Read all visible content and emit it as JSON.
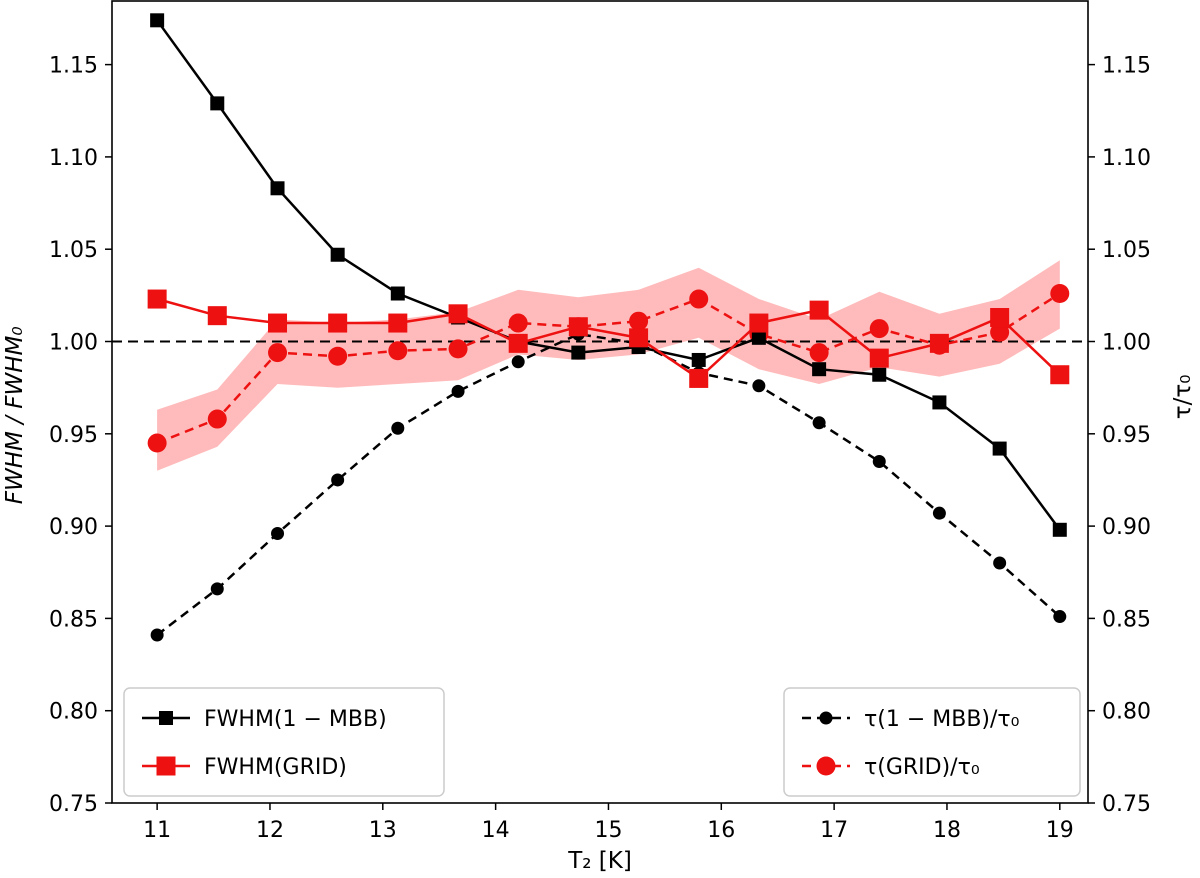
{
  "chart_data": {
    "type": "line",
    "title": "",
    "xlabel": "T₂ [K]",
    "ylabel_left": "FWHM / FWHM₀",
    "ylabel_right": "τ/τ₀",
    "xlim": [
      10.6,
      19.25
    ],
    "ylim": [
      0.75,
      1.185
    ],
    "x_ticks": [
      "11",
      "12",
      "13",
      "14",
      "15",
      "16",
      "17",
      "18",
      "19"
    ],
    "y_ticks": [
      "0.75",
      "0.80",
      "0.85",
      "0.90",
      "0.95",
      "1.00",
      "1.05",
      "1.10",
      "1.15"
    ],
    "reference_line_y": 1.0,
    "x": [
      11.0,
      11.533,
      12.067,
      12.6,
      13.133,
      13.667,
      14.2,
      14.733,
      15.267,
      15.8,
      16.333,
      16.867,
      17.4,
      17.933,
      18.467,
      19.0
    ],
    "series": [
      {
        "name": "FWHM(1 − MBB)",
        "color": "#000000",
        "style": "solid",
        "marker": "square",
        "values": [
          1.174,
          1.129,
          1.083,
          1.047,
          1.026,
          1.013,
          1.0,
          0.994,
          0.997,
          0.99,
          1.002,
          0.985,
          0.982,
          0.967,
          0.942,
          0.898
        ]
      },
      {
        "name": "FWHM(GRID)",
        "color": "#ee1111",
        "style": "solid",
        "marker": "square",
        "values": [
          1.023,
          1.014,
          1.01,
          1.01,
          1.01,
          1.015,
          0.999,
          1.008,
          1.002,
          0.98,
          1.01,
          1.017,
          0.991,
          0.999,
          1.013,
          0.982
        ]
      },
      {
        "name": "τ(1 − MBB)/τ₀",
        "color": "#000000",
        "style": "dashed",
        "marker": "circle",
        "values": [
          0.841,
          0.866,
          0.896,
          0.925,
          0.953,
          0.973,
          0.989,
          1.004,
          0.999,
          0.983,
          0.976,
          0.956,
          0.935,
          0.907,
          0.88,
          0.851
        ]
      },
      {
        "name": "τ(GRID)/τ₀",
        "color": "#ee1111",
        "style": "dashed",
        "marker": "circle",
        "values": [
          0.945,
          0.958,
          0.994,
          0.992,
          0.995,
          0.996,
          1.01,
          1.008,
          1.011,
          1.023,
          1.004,
          0.994,
          1.007,
          0.998,
          1.005,
          1.026
        ]
      }
    ],
    "band": {
      "name": "τ(GRID)/τ₀ uncertainty",
      "color": "#ffbbbb",
      "lower": [
        0.93,
        0.943,
        0.977,
        0.975,
        0.977,
        0.979,
        0.993,
        0.99,
        0.993,
        1.002,
        0.985,
        0.977,
        0.986,
        0.981,
        0.988,
        1.007
      ],
      "upper": [
        0.963,
        0.974,
        1.012,
        1.01,
        1.012,
        1.016,
        1.028,
        1.024,
        1.028,
        1.04,
        1.023,
        1.012,
        1.027,
        1.015,
        1.023,
        1.044
      ]
    },
    "legends": [
      {
        "placement": "bottom-left",
        "entries": [
          "FWHM(1 − MBB)",
          "FWHM(GRID)"
        ]
      },
      {
        "placement": "bottom-right",
        "entries": [
          "τ(1 − MBB)/τ₀",
          "τ(GRID)/τ₀"
        ]
      }
    ]
  }
}
